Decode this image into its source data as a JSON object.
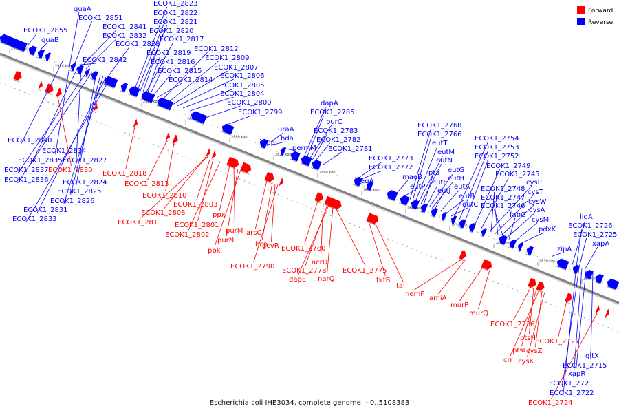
{
  "caption": "Escherichia coli IHE3034, complete genome. - 0..5108383",
  "legend": [
    {
      "label": "Forward",
      "color": "#ff0000"
    },
    {
      "label": "Reverse",
      "color": "#0000ff"
    }
  ],
  "colors": {
    "forward": "#ff0000",
    "reverse": "#0000ff",
    "axis": "#808080"
  },
  "ticks": [
    "2930 kbp",
    "2920 kbp",
    "2910 kbp",
    "2900 kbp",
    "2890 kbp",
    "2880 kbp",
    "2870 kbp",
    "2860 kbp",
    "2850 kbp",
    "2840 kbp",
    "2830 kbp",
    "2820 kbp",
    "2810 kbp",
    "2800 kbp"
  ],
  "reverse_labels": [
    "guaA",
    "ECOK1_2851",
    "ECOK1_2855",
    "guaB",
    "ECOK1_2841",
    "ECOK1_2832",
    "ECOK1_2828",
    "ECOK1_2842",
    "ECOK1_2823",
    "ECOK1_2822",
    "ECOK1_2821",
    "ECOK1_2820",
    "ECOK1_2817",
    "ECOK1_2819",
    "ECOK1_2816",
    "ECOK1_2815",
    "ECOK1_2814",
    "ECOK1_2812",
    "ECOK1_2809",
    "ECOK1_2807",
    "ECOK1_2806",
    "ECOK1_2805",
    "ECOK1_2804",
    "ECOK1_2800",
    "ECOK1_2799",
    "dapA",
    "ECOK1_2785",
    "purC",
    "ECOK1_2783",
    "ECOK1_2782",
    "ECOK1_2781",
    "uraA",
    "hda",
    "upp",
    "permM",
    "ECOK1_2773",
    "ECOK1_2772",
    "aegA",
    "ECOK1_2768",
    "ECOK1_2766",
    "eutT",
    "eutM",
    "eutN",
    "maeB",
    "pta",
    "eutP",
    "eutE",
    "eutG",
    "eutH",
    "eutJ",
    "eutA",
    "eutB",
    "eutC",
    "ECOK1_2754",
    "ECOK1_2753",
    "ECOK1_2752",
    "ECOK1_2749",
    "ECOK1_2745",
    "cysP",
    "ECOK1_2748",
    "cysT",
    "ECOK1_2747",
    "cysW",
    "ECOK1_2746",
    "cysA",
    "fabG",
    "cysM",
    "pdxK",
    "zipA",
    "ligA",
    "ECOK1_2726",
    "ECOK1_2725",
    "xapA",
    "ECOK1_2840",
    "ECOK1_2834",
    "ECOK1_2835",
    "ECOK1_2827",
    "ECOK1_2837",
    "ECOK1_2836",
    "ECOK1_2824",
    "ECOK1_2825",
    "ECOK1_2826",
    "ECOK1_2831",
    "ECOK1_2833",
    "gltX",
    "ECOK1_2715",
    "xapR",
    "ECOK1_2721",
    "ECOK1_2722"
  ],
  "forward_labels": [
    "ECOK1_2830",
    "ECOK1_2818",
    "ECOK1_2813",
    "ECOK1_2810",
    "ECOK1_2808",
    "ECOK1_2811",
    "ECOK1_2803",
    "ECOK1_2801",
    "ECOK1_2802",
    "ppx",
    "purM",
    "purN",
    "ppk",
    "arsC",
    "bcp",
    "gcvR",
    "ECOK1_2790",
    "ECOK1_2780",
    "acrD",
    "ECOK1_2778",
    "dapE",
    "narQ",
    "ECOK1_2775",
    "tktB",
    "tal",
    "hemF",
    "amiA",
    "murP",
    "murQ",
    "ECOK1_2736",
    "ptsH",
    "ptsI",
    "crr",
    "cysZ",
    "cysK",
    "ECOK1_2727",
    "ECOK1_2724"
  ]
}
